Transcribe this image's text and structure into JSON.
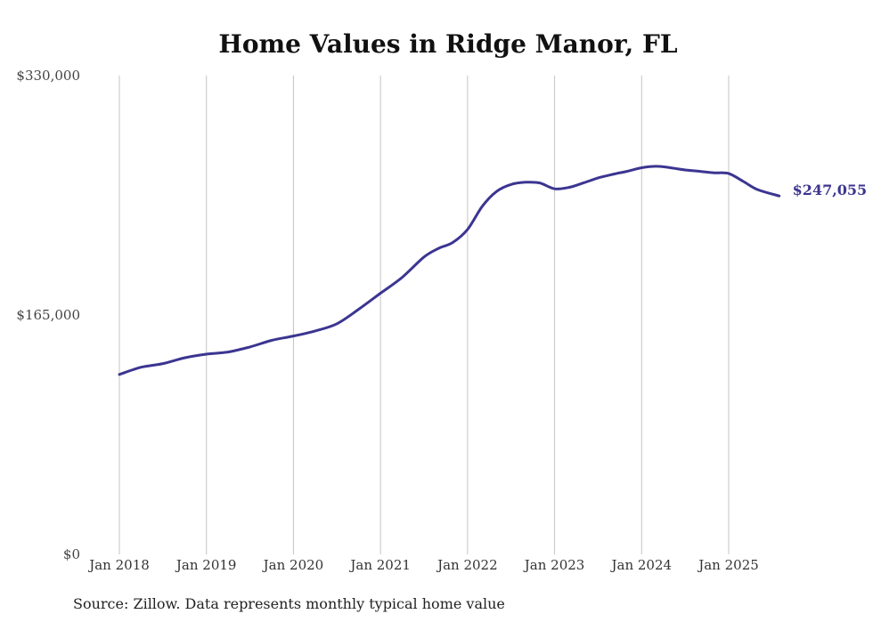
{
  "chart_data": {
    "type": "line",
    "title": "Home Values in Ridge Manor, FL",
    "source_note": "Source: Zillow. Data represents monthly typical home value",
    "end_label": "$247,055",
    "line_color": "#3b3591",
    "grid_color": "#c4c4c4",
    "grid": "vertical",
    "ylim": [
      0,
      330000
    ],
    "y_ticks": [
      {
        "value": 330000,
        "label": "$330,000"
      },
      {
        "value": 165000,
        "label": "$165,000"
      },
      {
        "value": 0,
        "label": "$0"
      }
    ],
    "x_ticks": [
      {
        "value": 2018,
        "label": "Jan 2018"
      },
      {
        "value": 2019,
        "label": "Jan 2019"
      },
      {
        "value": 2020,
        "label": "Jan 2020"
      },
      {
        "value": 2021,
        "label": "Jan 2021"
      },
      {
        "value": 2022,
        "label": "Jan 2022"
      },
      {
        "value": 2023,
        "label": "Jan 2023"
      },
      {
        "value": 2024,
        "label": "Jan 2024"
      },
      {
        "value": 2025,
        "label": "Jan 2025"
      }
    ],
    "xlim": [
      2018,
      2025.58
    ],
    "series": [
      {
        "x": [
          2018.0,
          2018.25,
          2018.5,
          2018.75,
          2019.0,
          2019.25,
          2019.5,
          2019.75,
          2020.0,
          2020.25,
          2020.5,
          2020.75,
          2021.0,
          2021.25,
          2021.5,
          2021.67,
          2021.83,
          2022.0,
          2022.17,
          2022.33,
          2022.5,
          2022.67,
          2022.83,
          2023.0,
          2023.17,
          2023.33,
          2023.5,
          2023.67,
          2023.83,
          2024.0,
          2024.17,
          2024.33,
          2024.5,
          2024.67,
          2024.83,
          2025.0,
          2025.17,
          2025.33,
          2025.58
        ],
        "y": [
          124000,
          129000,
          131500,
          135500,
          138000,
          139500,
          143000,
          147500,
          150500,
          154000,
          159000,
          169000,
          180000,
          191000,
          205000,
          211000,
          215000,
          224000,
          240000,
          250000,
          255000,
          256500,
          256000,
          252000,
          253000,
          256000,
          259500,
          262000,
          264000,
          266500,
          267500,
          266500,
          265000,
          264000,
          263000,
          262500,
          257000,
          251500,
          247055
        ]
      }
    ]
  }
}
